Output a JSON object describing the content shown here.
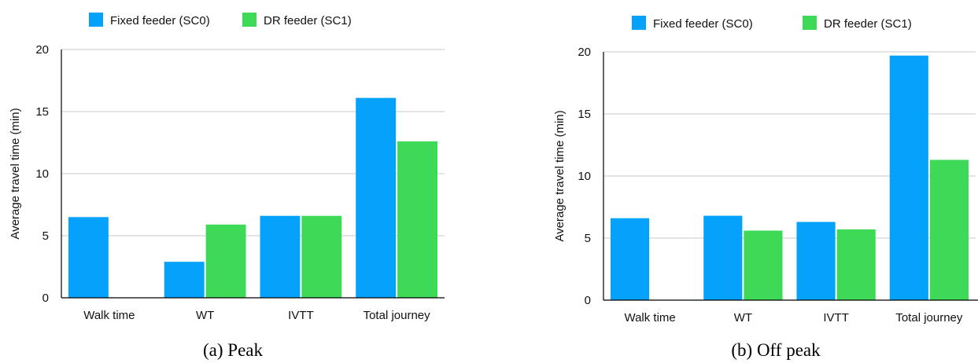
{
  "chart_data": [
    {
      "type": "bar",
      "caption": "(a) Peak",
      "ylabel": "Average travel time (min)",
      "xlabel": "",
      "ylim": [
        0,
        20
      ],
      "yticks": [
        0,
        5,
        10,
        15,
        20
      ],
      "grid": true,
      "legend_position": "top",
      "categories": [
        "Walk time",
        "WT",
        "IVTT",
        "Total journey"
      ],
      "series": [
        {
          "name": "Fixed feeder (SC0)",
          "color": "#04A2FB",
          "values": [
            6.5,
            2.9,
            6.6,
            16.1
          ]
        },
        {
          "name": "DR feeder (SC1)",
          "color": "#3DD957",
          "values": [
            0,
            5.9,
            6.6,
            12.6
          ]
        }
      ]
    },
    {
      "type": "bar",
      "caption": "(b) Off peak",
      "ylabel": "Average travel time (min)",
      "xlabel": "",
      "ylim": [
        0,
        20
      ],
      "yticks": [
        0,
        5,
        10,
        15,
        20
      ],
      "grid": true,
      "legend_position": "top",
      "categories": [
        "Walk time",
        "WT",
        "IVTT",
        "Total journey"
      ],
      "series": [
        {
          "name": "Fixed feeder (SC0)",
          "color": "#04A2FB",
          "values": [
            6.6,
            6.8,
            6.3,
            19.7
          ]
        },
        {
          "name": "DR feeder (SC1)",
          "color": "#3DD957",
          "values": [
            0,
            5.6,
            5.7,
            11.3
          ]
        }
      ]
    }
  ]
}
